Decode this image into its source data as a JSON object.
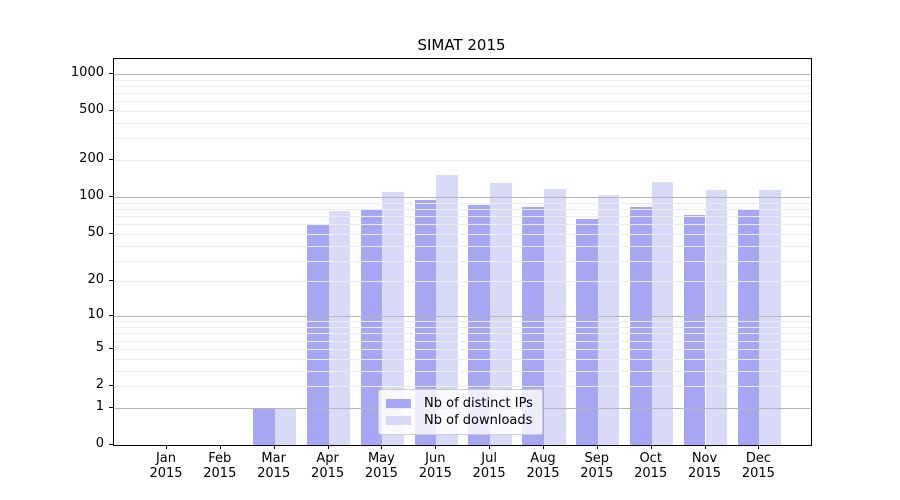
{
  "chart_data": {
    "type": "bar",
    "title": "SIMAT 2015",
    "scale": "log1p",
    "grid": true,
    "xlabel": "",
    "ylabel": "",
    "categories": [
      "Jan",
      "Feb",
      "Mar",
      "Apr",
      "May",
      "Jun",
      "Jul",
      "Aug",
      "Sep",
      "Oct",
      "Nov",
      "Dec"
    ],
    "year_label": "2015",
    "series": [
      {
        "name": "Nb of distinct IPs",
        "color": "#a6a6f2",
        "values": [
          0,
          0,
          1,
          60,
          80,
          95,
          87,
          83,
          66,
          83,
          71,
          79
        ]
      },
      {
        "name": "Nb of downloads",
        "color": "#d9d9f8",
        "values": [
          0,
          0,
          1,
          77,
          110,
          152,
          130,
          117,
          104,
          134,
          115,
          114
        ]
      }
    ],
    "y_ticks": [
      1000,
      500,
      200,
      100,
      50,
      20,
      10,
      5,
      2,
      1,
      0
    ],
    "y_major_gridlines": [
      1,
      10,
      100,
      1000
    ],
    "y_minor_gridlines": [
      2,
      3,
      4,
      5,
      6,
      7,
      8,
      9,
      20,
      30,
      40,
      50,
      60,
      70,
      80,
      90,
      200,
      300,
      400,
      500,
      600,
      700,
      800,
      900
    ],
    "ylim": [
      0,
      1210
    ],
    "legend_position": "lower-center",
    "colors": {
      "axis": "#000000",
      "major_grid": "#b5b5b5",
      "minor_grid": "#ececec"
    }
  }
}
